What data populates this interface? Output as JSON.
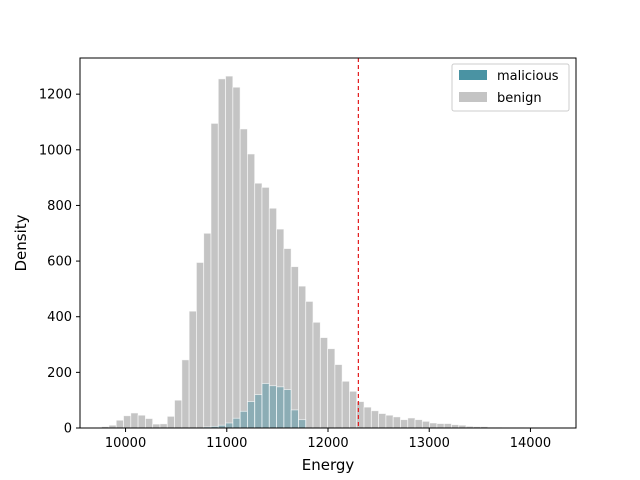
{
  "chart_data": {
    "type": "bar",
    "xlabel": "Energy",
    "ylabel": "Density",
    "xlim": [
      9550,
      14450
    ],
    "ylim": [
      0,
      1330
    ],
    "xticks": [
      10000,
      11000,
      12000,
      13000,
      14000
    ],
    "yticks": [
      0,
      200,
      400,
      600,
      800,
      1000,
      1200
    ],
    "bin_width": 72,
    "threshold": 12300,
    "legend": {
      "position": "top-right",
      "entries": [
        "malicious",
        "benign"
      ]
    },
    "series": [
      {
        "name": "benign",
        "color": "#c4c4c4",
        "x": [
          9800,
          9872,
          9944,
          10016,
          10088,
          10160,
          10232,
          10304,
          10376,
          10448,
          10520,
          10592,
          10664,
          10736,
          10808,
          10880,
          10952,
          11024,
          11096,
          11168,
          11240,
          11312,
          11384,
          11456,
          11528,
          11600,
          11672,
          11744,
          11816,
          11888,
          11960,
          12032,
          12104,
          12176,
          12248,
          12320,
          12392,
          12464,
          12536,
          12608,
          12680,
          12752,
          12824,
          12896,
          12968,
          13040,
          13112,
          13184,
          13256,
          13328,
          13400,
          13472,
          13544,
          13616,
          13688,
          13760,
          13832,
          13904,
          13976,
          14048,
          14120,
          14192
        ],
        "values": [
          5,
          10,
          28,
          44,
          54,
          46,
          34,
          14,
          15,
          42,
          100,
          245,
          420,
          595,
          700,
          1095,
          1255,
          1265,
          1225,
          1075,
          985,
          880,
          865,
          790,
          715,
          645,
          580,
          510,
          455,
          380,
          325,
          285,
          228,
          168,
          132,
          95,
          75,
          62,
          52,
          46,
          40,
          30,
          36,
          30,
          24,
          18,
          16,
          16,
          12,
          10,
          6,
          5,
          5,
          3,
          3,
          2,
          2,
          2,
          1,
          1,
          1,
          0
        ]
      },
      {
        "name": "malicious",
        "color": "#4a93a3",
        "x": [
          10808,
          10880,
          10952,
          11024,
          11096,
          11168,
          11240,
          11312,
          11384,
          11456,
          11528,
          11600,
          11672,
          11744
        ],
        "values": [
          4,
          6,
          10,
          18,
          35,
          60,
          95,
          120,
          160,
          152,
          148,
          138,
          65,
          30
        ]
      }
    ]
  }
}
